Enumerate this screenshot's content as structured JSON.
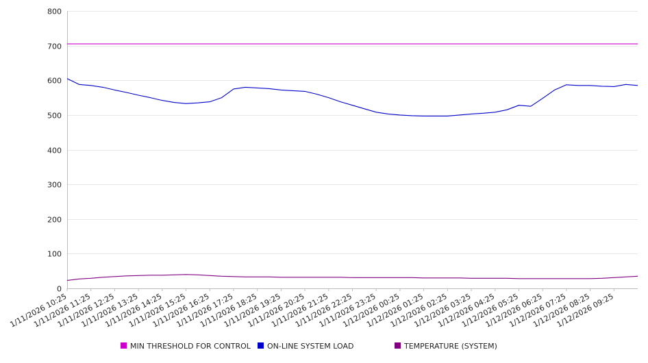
{
  "chart_data": {
    "type": "line",
    "title": "",
    "xlabel": "",
    "ylabel": "",
    "ylim": [
      0,
      800
    ],
    "yticks": [
      0,
      100,
      200,
      300,
      400,
      500,
      600,
      700,
      800
    ],
    "grid": true,
    "legend_position": "bottom",
    "x_tick_labels": [
      "1/11/2026 10:25",
      "1/11/2026 11:25",
      "1/11/2026 12:25",
      "1/11/2026 13:25",
      "1/11/2026 14:25",
      "1/11/2026 15:25",
      "1/11/2026 16:25",
      "1/11/2026 17:25",
      "1/11/2026 18:25",
      "1/11/2026 19:25",
      "1/11/2026 20:25",
      "1/11/2026 21:25",
      "1/11/2026 22:25",
      "1/11/2026 23:25",
      "1/12/2026 00:25",
      "1/12/2026 01:25",
      "1/12/2026 02:25",
      "1/12/2026 03:25",
      "1/12/2026 04:25",
      "1/12/2026 05:25",
      "1/12/2026 06:25",
      "1/12/2026 07:25",
      "1/12/2026 08:25",
      "1/12/2026 09:25"
    ],
    "x": [
      "1/11/2026 10:25",
      "1/11/2026 10:55",
      "1/11/2026 11:25",
      "1/11/2026 11:55",
      "1/11/2026 12:25",
      "1/11/2026 12:55",
      "1/11/2026 13:25",
      "1/11/2026 13:55",
      "1/11/2026 14:25",
      "1/11/2026 14:55",
      "1/11/2026 15:25",
      "1/11/2026 15:55",
      "1/11/2026 16:25",
      "1/11/2026 16:55",
      "1/11/2026 17:25",
      "1/11/2026 17:55",
      "1/11/2026 18:25",
      "1/11/2026 18:55",
      "1/11/2026 19:25",
      "1/11/2026 19:55",
      "1/11/2026 20:25",
      "1/11/2026 20:55",
      "1/11/2026 21:25",
      "1/11/2026 21:55",
      "1/11/2026 22:25",
      "1/11/2026 22:55",
      "1/11/2026 23:25",
      "1/11/2026 23:55",
      "1/12/2026 00:25",
      "1/12/2026 00:55",
      "1/12/2026 01:25",
      "1/12/2026 01:55",
      "1/12/2026 02:25",
      "1/12/2026 02:55",
      "1/12/2026 03:25",
      "1/12/2026 03:55",
      "1/12/2026 04:25",
      "1/12/2026 04:55",
      "1/12/2026 05:25",
      "1/12/2026 05:55",
      "1/12/2026 06:25",
      "1/12/2026 06:55",
      "1/12/2026 07:25",
      "1/12/2026 07:55",
      "1/12/2026 08:25",
      "1/12/2026 08:55",
      "1/12/2026 09:25",
      "1/12/2026 09:55",
      "1/12/2026 10:20"
    ],
    "series": [
      {
        "name": "MIN THRESHOLD FOR CONTROL",
        "color": "#cc00cc",
        "values": [
          705,
          705,
          705,
          705,
          705,
          705,
          705,
          705,
          705,
          705,
          705,
          705,
          705,
          705,
          705,
          705,
          705,
          705,
          705,
          705,
          705,
          705,
          705,
          705,
          705,
          705,
          705,
          705,
          705,
          705,
          705,
          705,
          705,
          705,
          705,
          705,
          705,
          705,
          705,
          705,
          705,
          705,
          705,
          705,
          705,
          705,
          705,
          705,
          705
        ]
      },
      {
        "name": "ON-LINE SYSTEM LOAD",
        "color": "#0000cc",
        "values": [
          605,
          588,
          585,
          580,
          572,
          565,
          557,
          550,
          542,
          536,
          533,
          535,
          538,
          550,
          575,
          580,
          578,
          576,
          572,
          570,
          568,
          560,
          550,
          538,
          528,
          518,
          508,
          503,
          500,
          498,
          497,
          497,
          497,
          500,
          503,
          505,
          508,
          515,
          528,
          525,
          548,
          572,
          587,
          585,
          585,
          583,
          582,
          588,
          585
        ]
      },
      {
        "name": "TEMPERATURE (SYSTEM)",
        "color": "#800080",
        "values": [
          23,
          27,
          29,
          32,
          34,
          36,
          37,
          38,
          38,
          39,
          40,
          39,
          37,
          35,
          34,
          33,
          33,
          33,
          32,
          32,
          32,
          32,
          32,
          32,
          31,
          31,
          31,
          31,
          31,
          31,
          30,
          30,
          30,
          30,
          29,
          29,
          29,
          29,
          28,
          28,
          28,
          28,
          28,
          28,
          28,
          29,
          31,
          33,
          35
        ]
      }
    ]
  }
}
